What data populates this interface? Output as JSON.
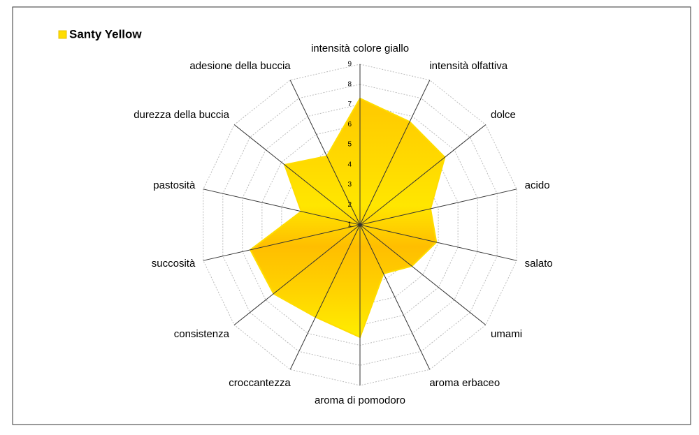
{
  "chart_data": {
    "type": "radar",
    "categories": [
      "intensità colore giallo",
      "intensità olfattiva",
      "dolce",
      "acido",
      "salato",
      "umami",
      "aroma erbaceo",
      "aroma di pomodoro",
      "croccantezza",
      "consistenza",
      "succosità",
      "pastosità",
      "durezza della buccia",
      "adesione della buccia"
    ],
    "series": [
      {
        "name": "Santy Yellow",
        "color": "#ffdd00",
        "values": [
          7.3,
          6.7,
          6.4,
          4.6,
          4.9,
          4.3,
          3.7,
          6.6,
          6.1,
          6.5,
          6.6,
          4.0,
          5.8,
          4.8
        ]
      }
    ],
    "rlim": [
      1,
      9
    ],
    "rticks": [
      1,
      2,
      3,
      4,
      5,
      6,
      7,
      8,
      9
    ],
    "grid": true,
    "legend": "top-left"
  }
}
